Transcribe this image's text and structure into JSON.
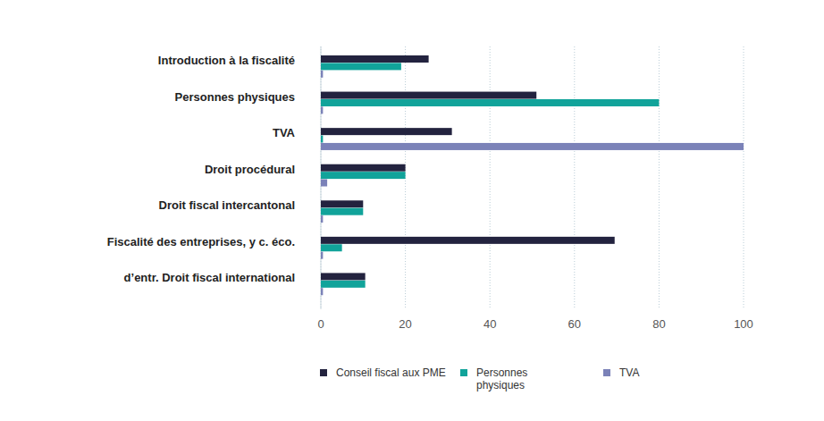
{
  "chart_data": {
    "type": "bar",
    "orientation": "horizontal",
    "grid": true,
    "legend": "bottom",
    "categories": [
      "Introduction à la fiscalité",
      "Personnes physiques",
      "TVA",
      "Droit procédural",
      "Droit fiscal intercantonal",
      "Fiscalité des entreprises, y c. éco.",
      "d’entr. Droit fiscal international"
    ],
    "series": [
      {
        "name": "Conseil fiscal aux PME",
        "color": "#23233f",
        "values": [
          25.5,
          51,
          31,
          20,
          10,
          69.5,
          10.5
        ]
      },
      {
        "name": "Personnes physiques",
        "color": "#11a39a",
        "values": [
          19,
          80,
          0.5,
          20,
          10,
          5,
          10.5
        ]
      },
      {
        "name": "TVA",
        "color": "#7b82b8",
        "values": [
          0.5,
          0.5,
          100,
          1.5,
          0.5,
          0.5,
          0.5
        ]
      }
    ],
    "xlim": [
      0,
      100
    ],
    "xticks": [
      0,
      20,
      40,
      60,
      80,
      100
    ]
  }
}
